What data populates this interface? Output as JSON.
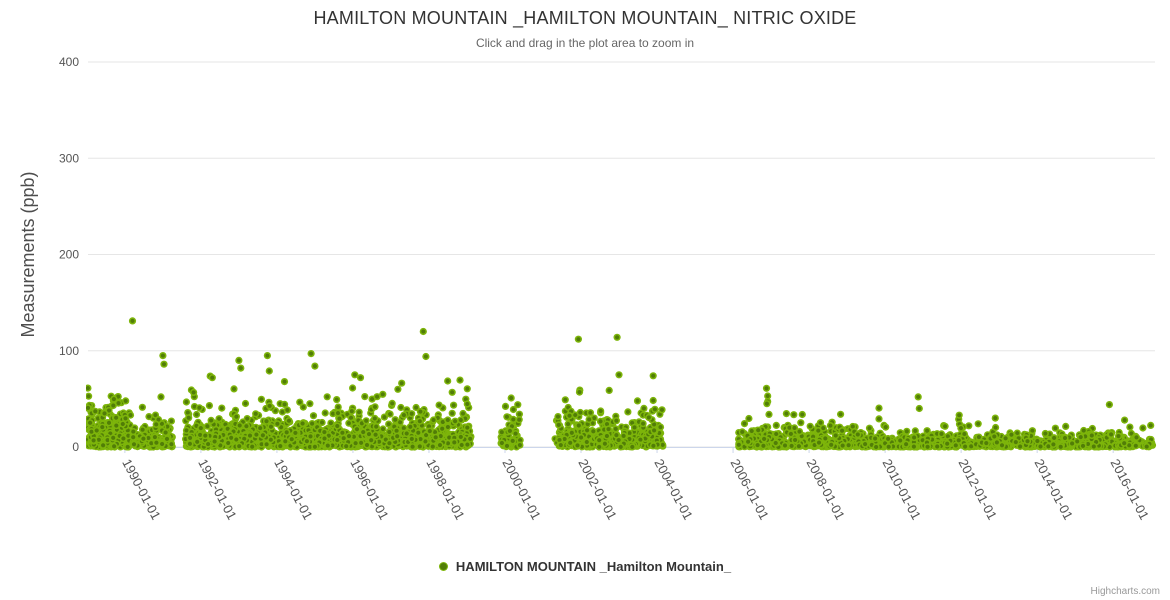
{
  "credit": "Highcharts.com",
  "colors": {
    "background": "#ffffff",
    "point_ring": "#7db50a",
    "point_core": "#517d07",
    "grid_line": "#e6e6e6",
    "axis_line": "#ccd6eb",
    "tick_mark": "#ccd6eb",
    "title_text": "#333333",
    "subtitle_text": "#666666",
    "axis_label_text": "#555555",
    "axis_title_text": "#4d4d4d",
    "legend_text": "#333333",
    "credit_text": "#999999"
  },
  "chart_data": {
    "type": "scatter",
    "title": "HAMILTON MOUNTAIN _HAMILTON MOUNTAIN_ NITRIC OXIDE",
    "subtitle": "Click and drag in the plot area to zoom in",
    "xlabel": "",
    "ylabel": "Measurements (ppb)",
    "ylim": [
      0,
      400
    ],
    "yticks": [
      0,
      100,
      200,
      300,
      400
    ],
    "xtick_labels": [
      "1990-01-01",
      "1992-01-01",
      "1994-01-01",
      "1996-01-01",
      "1998-01-01",
      "2000-01-01",
      "2002-01-01",
      "2004-01-01",
      "2006-01-01",
      "2008-01-01",
      "2010-01-01",
      "2012-01-01",
      "2014-01-01",
      "2016-01-01"
    ],
    "xtick_years": [
      1990,
      1992,
      1994,
      1996,
      1998,
      2000,
      2002,
      2004,
      2006,
      2008,
      2010,
      2012,
      2014,
      2016
    ],
    "x_domain_years": [
      1989.03,
      2017.1
    ],
    "grid": true,
    "legend_position": "bottom-center",
    "series": [
      {
        "name": "HAMILTON MOUNTAIN _Hamilton Mountain_",
        "color": "#7db50a",
        "marker": "circle"
      }
    ],
    "point_clusters": [
      {
        "x0": 1989.03,
        "x1": 1990.15,
        "n": 280,
        "mean": 14,
        "cap": 68
      },
      {
        "x0": 1990.2,
        "x1": 1991.25,
        "n": 210,
        "mean": 8,
        "cap": 45
      },
      {
        "x0": 1991.6,
        "x1": 1999.1,
        "n": 1500,
        "mean": 12,
        "cap": 75
      },
      {
        "x0": 1999.9,
        "x1": 2000.4,
        "n": 60,
        "mean": 13,
        "cap": 55
      },
      {
        "x0": 2001.3,
        "x1": 2002.35,
        "n": 150,
        "mean": 11,
        "cap": 68
      },
      {
        "x0": 2002.4,
        "x1": 2004.15,
        "n": 260,
        "mean": 11,
        "cap": 64
      },
      {
        "x0": 2006.15,
        "x1": 2010.0,
        "n": 620,
        "mean": 6,
        "cap": 48
      },
      {
        "x0": 2010.0,
        "x1": 2017.05,
        "n": 950,
        "mean": 4.5,
        "cap": 30
      }
    ],
    "outlier_points": [
      [
        1990.2,
        131
      ],
      [
        1990.95,
        52
      ],
      [
        1991.0,
        95
      ],
      [
        1991.03,
        86
      ],
      [
        1992.3,
        72
      ],
      [
        1993.0,
        90
      ],
      [
        1993.05,
        82
      ],
      [
        1993.75,
        95
      ],
      [
        1993.8,
        79
      ],
      [
        1994.2,
        68
      ],
      [
        1994.9,
        97
      ],
      [
        1995.0,
        84
      ],
      [
        1996.05,
        75
      ],
      [
        1996.2,
        72
      ],
      [
        1997.85,
        120
      ],
      [
        1997.92,
        94
      ],
      [
        2001.93,
        112
      ],
      [
        2001.96,
        57
      ],
      [
        2002.95,
        114
      ],
      [
        2003.0,
        75
      ],
      [
        2003.9,
        74
      ],
      [
        2006.88,
        61
      ],
      [
        2006.89,
        45
      ],
      [
        2006.91,
        53
      ],
      [
        2010.87,
        52
      ],
      [
        2010.9,
        40
      ],
      [
        2011.95,
        33
      ],
      [
        2012.9,
        30
      ],
      [
        2015.9,
        44
      ],
      [
        2016.3,
        28
      ]
    ]
  }
}
